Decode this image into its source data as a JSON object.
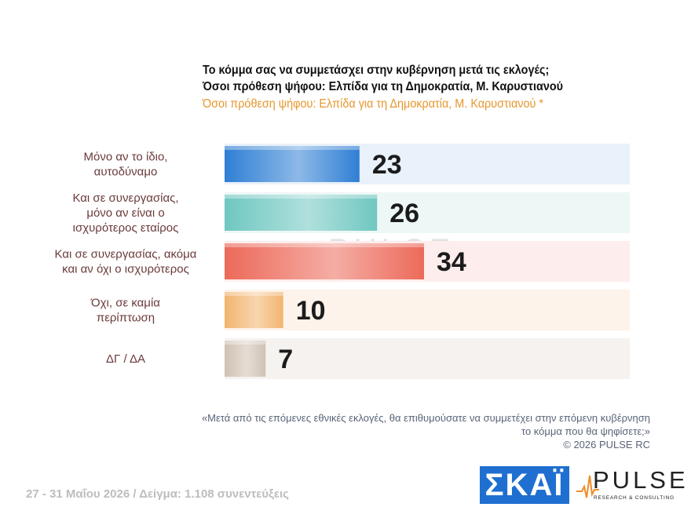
{
  "title": {
    "line1": "Το κόμμα σας να συμμετάσχει στην κυβέρνηση μετά τις εκλογές;",
    "line2": "Όσοι πρόθεση ψήφου: Ελπίδα για τη Δημοκρατία, Μ. Καρυστιανού",
    "subtitle": "Όσοι πρόθεση ψήφου: Ελπίδα για τη Δημοκρατία, Μ. Καρυστιανού *"
  },
  "chart_data": {
    "type": "bar",
    "orientation": "horizontal",
    "xlim": [
      0,
      100
    ],
    "categories": [
      [
        "Μόνο αν το ίδιο,",
        "αυτοδύναμο"
      ],
      [
        "Και σε συνεργασίας,",
        "μόνο αν είναι ο",
        "ισχυρότερος εταίρος"
      ],
      [
        "Και σε συνεργασίας, ακόμα",
        "και αν όχι ο ισχυρότερος"
      ],
      [
        "Όχι, σε καμία",
        "περίπτωση"
      ],
      [
        "ΔΓ / ΔΑ"
      ]
    ],
    "values": [
      23,
      26,
      34,
      10,
      7
    ],
    "colors": [
      "#2f7fd4",
      "#6fc7c1",
      "#ec6a5a",
      "#f2b46e",
      "#cfc1b3"
    ],
    "track_colors": [
      "#e9f1fa",
      "#edf7f6",
      "#fdeeed",
      "#fdf3ea",
      "#f5f2ef"
    ]
  },
  "watermark": {
    "word": "PULSE",
    "sub": "RESEARCH & CONSULTING"
  },
  "footnote": {
    "question_line1": "«Μετά από τις επόμενες εθνικές εκλογές, θα επιθυμούσατε να συμμετέχει στην επόμενη κυβέρνηση",
    "question_line2": "το κόμμα που θα ψηφίσετε;»",
    "copyright": "©  2026  PULSE RC"
  },
  "footer": {
    "fieldwork": "27 - 31  Μαΐου 2026  /  Δείγμα:  1.108 συνεντεύξεις"
  },
  "logos": {
    "skai": "ΣΚΑΪ",
    "pulse_word": "PULSE",
    "pulse_sub": "RESEARCH & CONSULTING"
  }
}
